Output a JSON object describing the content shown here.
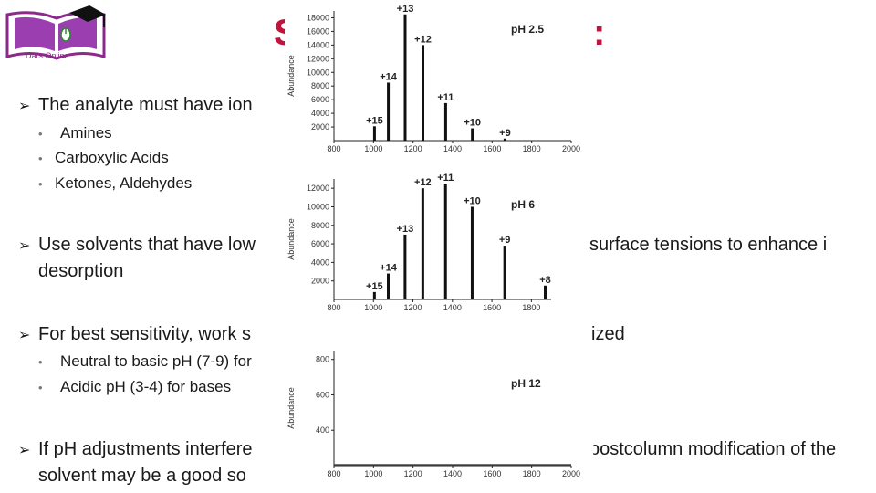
{
  "slide": {
    "title": "S",
    "title_tail": ":",
    "logo": {
      "brand": "Dars Online"
    },
    "bullets": [
      {
        "text": "The analyte must have ion",
        "subs": [
          "Amines",
          "Carboxylic Acids",
          "Ketones, Aldehydes"
        ]
      },
      {
        "text": "Use solvents that have low",
        "tail": "surface tensions to enhance i",
        "line2": "desorption",
        "subs": []
      },
      {
        "text": "For best sensitivity, work s",
        "tail": "ized",
        "subs": [
          "Neutral to basic pH (7-9) for",
          "Acidic pH (3-4) for bases"
        ]
      },
      {
        "text": "If pH adjustments interfere",
        "tail": "postcolumn modification of the",
        "line2": "solvent may be a good so",
        "subs": []
      }
    ]
  },
  "chart_data": [
    {
      "type": "bar",
      "title": "pH 2.5",
      "ylabel": "Abundance",
      "x_ticks": [
        "800",
        "1000",
        "1200",
        "1400",
        "1600",
        "1800",
        "2000"
      ],
      "y_ticks": [
        "2000",
        "4000",
        "6000",
        "8000",
        "10000",
        "12000",
        "14000",
        "16000",
        "18000"
      ],
      "xlim": [
        800,
        2000
      ],
      "ylim": [
        0,
        19000
      ],
      "peaks": [
        {
          "label": "+15",
          "x": 1005,
          "y": 2100
        },
        {
          "label": "+14",
          "x": 1075,
          "y": 8500
        },
        {
          "label": "+13",
          "x": 1160,
          "y": 18500
        },
        {
          "label": "+12",
          "x": 1250,
          "y": 14000
        },
        {
          "label": "+11",
          "x": 1365,
          "y": 5500
        },
        {
          "label": "+10",
          "x": 1500,
          "y": 1800
        },
        {
          "label": "+9",
          "x": 1665,
          "y": 300
        }
      ]
    },
    {
      "type": "bar",
      "title": "pH 6",
      "ylabel": "Abundance",
      "x_ticks": [
        "800",
        "1000",
        "1200",
        "1400",
        "1600",
        "1800"
      ],
      "y_ticks": [
        "2000",
        "4000",
        "6000",
        "8000",
        "10000",
        "12000"
      ],
      "xlim": [
        800,
        1900
      ],
      "ylim": [
        0,
        13000
      ],
      "peaks": [
        {
          "label": "+15",
          "x": 1005,
          "y": 800
        },
        {
          "label": "+14",
          "x": 1075,
          "y": 2800
        },
        {
          "label": "+13",
          "x": 1160,
          "y": 7000
        },
        {
          "label": "+12",
          "x": 1250,
          "y": 12000
        },
        {
          "label": "+11",
          "x": 1365,
          "y": 12500
        },
        {
          "label": "+10",
          "x": 1500,
          "y": 10000
        },
        {
          "label": "+9",
          "x": 1665,
          "y": 5800
        },
        {
          "label": "+8",
          "x": 1870,
          "y": 1500
        }
      ]
    },
    {
      "type": "bar",
      "title": "pH 12",
      "ylabel": "Abundance",
      "x_ticks": [
        "800",
        "1000",
        "1200",
        "1400",
        "1600",
        "1800",
        "2000"
      ],
      "y_ticks": [
        "400",
        "600",
        "800"
      ],
      "xlim": [
        800,
        2000
      ],
      "ylim": [
        200,
        850
      ],
      "peaks": []
    }
  ]
}
